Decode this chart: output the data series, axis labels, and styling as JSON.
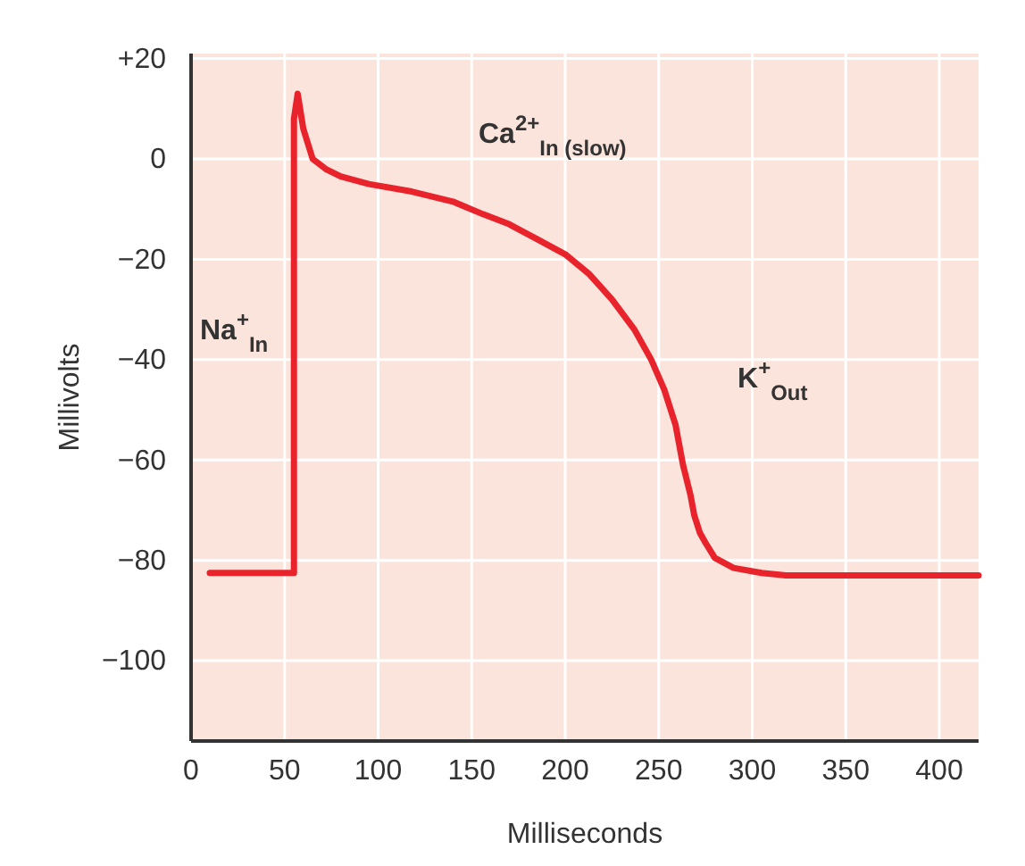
{
  "chart_data": {
    "type": "line",
    "xlabel": "Milliseconds",
    "ylabel": "Millivolts",
    "xlim": [
      0,
      421
    ],
    "ylim": [
      -116,
      21
    ],
    "xticks": [
      0,
      50,
      100,
      150,
      200,
      250,
      300,
      350,
      400
    ],
    "yticks": [
      {
        "value": 20,
        "label": "+20"
      },
      0,
      {
        "value": -20,
        "label": "−20"
      },
      {
        "value": -40,
        "label": "−40"
      },
      {
        "value": -60,
        "label": "−60"
      },
      {
        "value": -80,
        "label": "−80"
      },
      {
        "value": -100,
        "label": "−100"
      }
    ],
    "grid": true,
    "line_style": "solid",
    "marker": "none",
    "series": [
      {
        "color": "#e8232b",
        "x": [
          10,
          55,
          55,
          57,
          60,
          65,
          72,
          80,
          95,
          118,
          140,
          156,
          170,
          185,
          200,
          213,
          225,
          237,
          246,
          253,
          259,
          263,
          267,
          269,
          272,
          275,
          280,
          290,
          305,
          318,
          350,
          390,
          421
        ],
        "values": [
          -82.5,
          -82.5,
          8,
          13,
          6,
          0,
          -2,
          -3.5,
          -5,
          -6.5,
          -8.5,
          -11,
          -13,
          -16,
          -19,
          -23,
          -28,
          -34,
          -40,
          -46,
          -53,
          -61,
          -67,
          -71,
          -74.5,
          -76.5,
          -79.5,
          -81.5,
          -82.5,
          -83,
          -83,
          -83,
          -83
        ]
      }
    ],
    "annotations": [
      "Na$^{+}$$_{In}$",
      "Ca$^{2+}$$_{In (slow)}$",
      "K$^{+}$$_{Out}$"
    ]
  }
}
